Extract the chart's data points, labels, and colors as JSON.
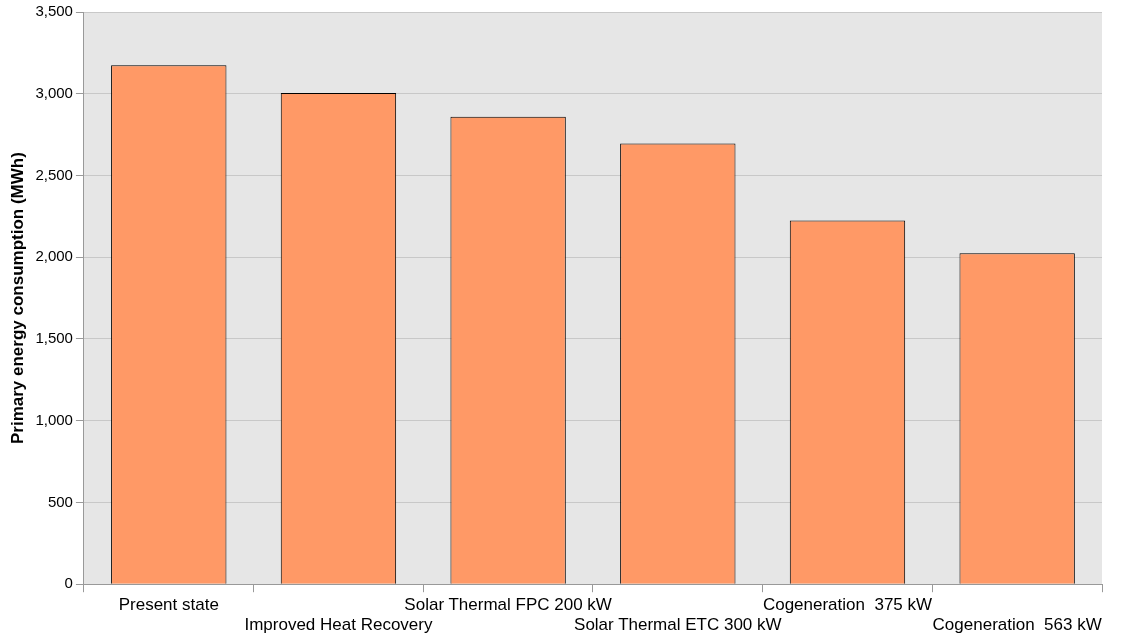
{
  "chart_data": {
    "type": "bar",
    "ylabel": "Primary energy consumption (MWh)",
    "categories": [
      "Present state",
      "Improved Heat Recovery",
      "Solar Thermal FPC 200 kW",
      "Solar Thermal ETC 300 kW",
      "Cogeneration  375 kW",
      "Cogeneration  563 kW"
    ],
    "values": [
      3175,
      3005,
      2860,
      2695,
      2225,
      2025
    ],
    "color": "#ff9966",
    "ylim": [
      0,
      3500
    ],
    "yticks": [
      0,
      500,
      {
        "value": 1000,
        "label": "1,000"
      },
      {
        "value": 1500,
        "label": "1,500"
      },
      {
        "value": 2000,
        "label": "2,000"
      },
      {
        "value": 2500,
        "label": "2,500"
      },
      {
        "value": 3000,
        "label": "3,000"
      },
      {
        "value": 3500,
        "label": "3,500"
      }
    ],
    "grid": "y"
  }
}
